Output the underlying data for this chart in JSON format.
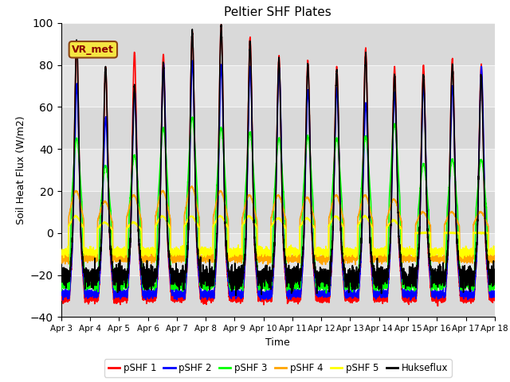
{
  "title": "Peltier SHF Plates",
  "xlabel": "Time",
  "ylabel": "Soil Heat Flux (W/m2)",
  "ylim": [
    -40,
    100
  ],
  "xlim_days": [
    0,
    15
  ],
  "x_tick_labels": [
    "Apr 3",
    "Apr 4",
    "Apr 5",
    "Apr 6",
    "Apr 7",
    "Apr 8",
    "Apr 9",
    "Apr 10",
    "Apr 11",
    "Apr 12",
    "Apr 13",
    "Apr 14",
    "Apr 15",
    "Apr 16",
    "Apr 17",
    "Apr 18"
  ],
  "legend_labels": [
    "pSHF 1",
    "pSHF 2",
    "pSHF 3",
    "pSHF 4",
    "pSHF 5",
    "Hukseflux"
  ],
  "line_colors": [
    "red",
    "blue",
    "lime",
    "orange",
    "yellow",
    "black"
  ],
  "line_widths": [
    1.2,
    1.2,
    1.2,
    1.2,
    1.2,
    1.2
  ],
  "annotation_text": "VR_met",
  "bg_color": "#e0e0e0",
  "grid_color": "#f5f5f5",
  "yticks": [
    -40,
    -20,
    0,
    20,
    40,
    60,
    80,
    100
  ],
  "day_peaks_shf1": [
    91,
    79,
    86,
    85,
    96,
    99,
    93,
    84,
    82,
    79,
    88,
    79,
    80,
    83,
    80
  ],
  "day_peaks_shf2": [
    71,
    55,
    68,
    81,
    82,
    80,
    79,
    79,
    68,
    69,
    62,
    67,
    71,
    70,
    79
  ],
  "day_peaks_shf3": [
    45,
    32,
    37,
    50,
    55,
    50,
    48,
    45,
    46,
    45,
    46,
    52,
    33,
    35,
    35
  ],
  "day_peaks_shf4": [
    20,
    15,
    18,
    20,
    22,
    20,
    18,
    18,
    17,
    18,
    18,
    16,
    10,
    10,
    10
  ],
  "day_peaks_shf5": [
    8,
    5,
    5,
    8,
    8,
    8,
    8,
    7,
    7,
    8,
    8,
    6,
    0,
    0,
    0
  ],
  "day_peaks_hux": [
    91,
    79,
    70,
    80,
    96,
    98,
    90,
    82,
    80,
    77,
    85,
    75,
    75,
    80,
    75
  ]
}
